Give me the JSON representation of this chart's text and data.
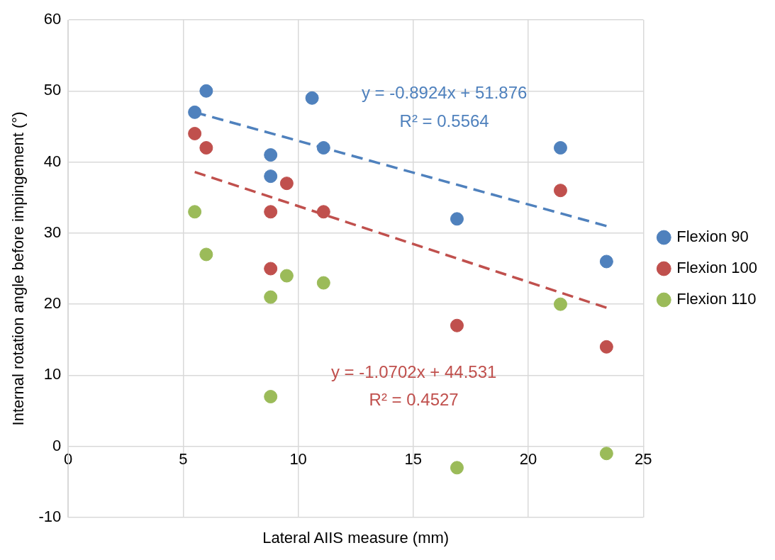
{
  "chart_data": {
    "type": "scatter",
    "xlabel": "Lateral AIIS measure (mm)",
    "ylabel": "Internal rotation angle before impingement (°)",
    "xlim": [
      0,
      25
    ],
    "xticks": [
      0,
      5,
      10,
      15,
      20,
      25
    ],
    "ylim": [
      -10,
      60
    ],
    "yticks": [
      -10,
      0,
      10,
      20,
      30,
      40,
      50,
      60
    ],
    "grid": true,
    "legend": "right",
    "marker": "circle",
    "series": [
      {
        "name": "Flexion 90",
        "color": "#4f81bd",
        "x": [
          5.5,
          6,
          8.8,
          8.8,
          10.6,
          11.1,
          16.9,
          21.4,
          23.4
        ],
        "values": [
          47,
          50,
          41,
          38,
          49,
          42,
          32,
          42,
          26
        ]
      },
      {
        "name": "Flexion 100",
        "color": "#c0504d",
        "x": [
          5.5,
          6,
          8.8,
          8.8,
          9.5,
          11.1,
          16.9,
          21.4,
          23.4
        ],
        "values": [
          44,
          42,
          33,
          25,
          37,
          33,
          17,
          36,
          14
        ]
      },
      {
        "name": "Flexion 110",
        "color": "#9bbb59",
        "x": [
          5.5,
          6,
          8.8,
          8.8,
          9.5,
          11.1,
          16.9,
          21.4,
          23.4
        ],
        "values": [
          33,
          27,
          21,
          7,
          24,
          23,
          -3,
          20,
          -1
        ]
      },
      {
        "type": "line",
        "color": "#4f81bd",
        "line_style": "dashed",
        "marker": "none",
        "x": [
          5.5,
          23.4
        ],
        "values": [
          47.0,
          31.0
        ]
      },
      {
        "type": "line",
        "color": "#c0504d",
        "line_style": "dashed",
        "marker": "none",
        "x": [
          5.5,
          23.4
        ],
        "values": [
          38.6,
          19.5
        ]
      }
    ],
    "annotations": [
      "y = -0.8924x + 51.876",
      "R² = 0.5564",
      "y = -1.0702x + 44.531",
      "R² = 0.4527"
    ]
  }
}
